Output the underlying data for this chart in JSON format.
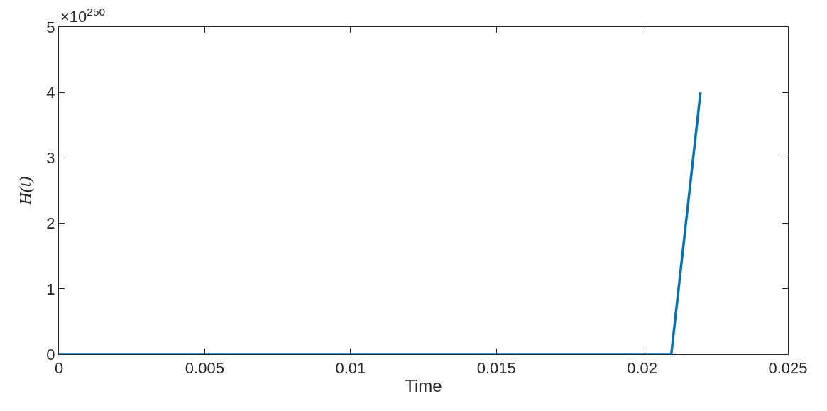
{
  "chart_data": {
    "type": "line",
    "xlabel": "Time",
    "ylabel": "H(t)",
    "x": [
      0,
      0.021,
      0.022
    ],
    "series": [
      {
        "color": "#0072bd",
        "values": [
          0,
          0,
          4
        ]
      }
    ],
    "xlim": [
      0,
      0.025
    ],
    "xticks": [
      0,
      0.005,
      0.01,
      0.015,
      0.02,
      0.025
    ],
    "ylim": [
      0,
      5
    ],
    "yticks": [
      0,
      1,
      2,
      3,
      4,
      5
    ],
    "annotations": [
      "×10$^{250}$"
    ],
    "marker": "none",
    "line_style": "solid"
  }
}
